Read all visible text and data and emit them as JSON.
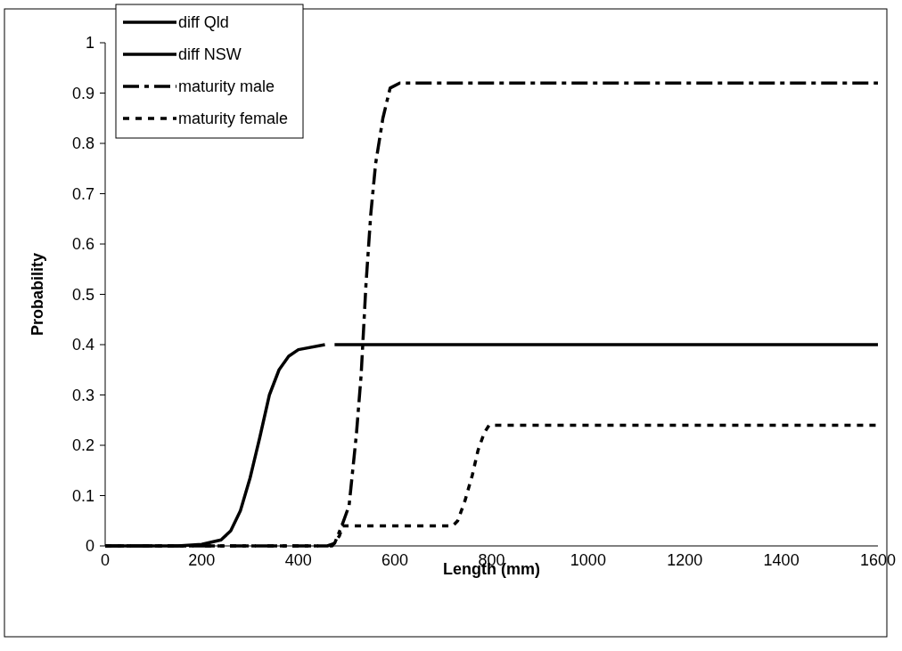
{
  "chart_data": {
    "type": "line",
    "xlabel": "Length (mm)",
    "ylabel": "Probability",
    "xlim": [
      0,
      1600
    ],
    "xticks": [
      0,
      200,
      400,
      600,
      800,
      1000,
      1200,
      1400,
      1600
    ],
    "ylim": [
      0,
      1
    ],
    "yticks": [
      0,
      0.1,
      0.2,
      0.3,
      0.4,
      0.5,
      0.6,
      0.7,
      0.8,
      0.9,
      1
    ],
    "grid": false,
    "legend": "top left",
    "marker": "none",
    "series": [
      {
        "name": "diff Qld",
        "color": "#000000",
        "line_style": "solid",
        "x": [
          0,
          150,
          200,
          240,
          260,
          280,
          300,
          320,
          340,
          360,
          380,
          400,
          455
        ],
        "values": [
          0,
          0,
          0.003,
          0.012,
          0.03,
          0.07,
          0.135,
          0.215,
          0.3,
          0.35,
          0.377,
          0.39,
          0.4
        ]
      },
      {
        "name": "diff NSW",
        "color": "#000000",
        "line_style": "solid",
        "x": [
          475,
          1600
        ],
        "values": [
          0.4,
          0.4
        ]
      },
      {
        "name": "maturity male",
        "color": "#000000",
        "line_style": "dashed",
        "x": [
          0,
          460,
          475,
          490,
          505,
          520,
          530,
          540,
          550,
          560,
          575,
          590,
          610,
          1600
        ],
        "values": [
          0,
          0,
          0.005,
          0.04,
          0.08,
          0.22,
          0.34,
          0.52,
          0.66,
          0.76,
          0.85,
          0.91,
          0.92,
          0.92
        ]
      },
      {
        "name": "maturity female",
        "color": "#000000",
        "line_style": "dotted",
        "x": [
          0,
          470,
          485,
          492,
          720,
          730,
          745,
          760,
          772,
          785,
          795,
          1600
        ],
        "values": [
          0,
          0,
          0.02,
          0.04,
          0.04,
          0.05,
          0.09,
          0.14,
          0.19,
          0.225,
          0.24,
          0.24
        ]
      }
    ]
  }
}
